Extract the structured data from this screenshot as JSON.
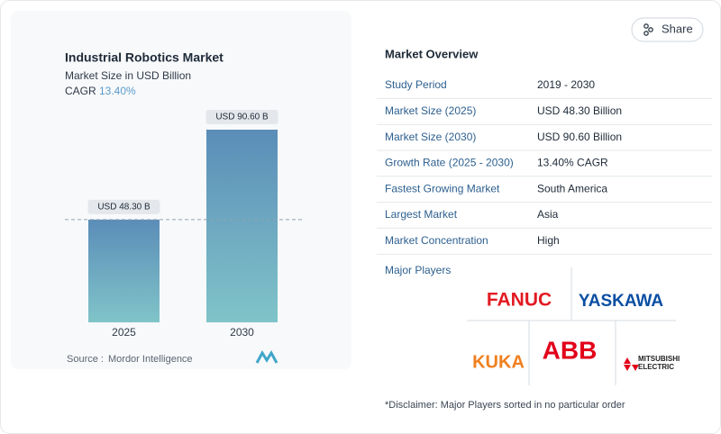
{
  "chart_data": {
    "type": "bar",
    "title": "Industrial Robotics Market",
    "subtitle": "Market Size in USD Billion",
    "cagr_label": "CAGR",
    "cagr": "13.40%",
    "categories": [
      "2025",
      "2030"
    ],
    "values": [
      48.3,
      90.6
    ],
    "value_labels": [
      "USD 48.30 B",
      "USD 90.60 B"
    ],
    "gradient": [
      "#5b8db8",
      "#80c4c9"
    ],
    "reference_line": true,
    "source_label": "Source :",
    "source": "Mordor Intelligence"
  },
  "share": "Share",
  "overview": {
    "title": "Market Overview",
    "rows": [
      [
        "Study Period",
        "2019 - 2030"
      ],
      [
        "Market Size (2025)",
        "USD 48.30 Billion"
      ],
      [
        "Market Size (2030)",
        "USD 90.60 Billion"
      ],
      [
        "Growth Rate (2025 - 2030)",
        "13.40% CAGR"
      ],
      [
        "Fastest Growing Market",
        "South America"
      ],
      [
        "Largest Market",
        "Asia"
      ],
      [
        "Market Concentration",
        "High"
      ]
    ],
    "players_title": "Major Players",
    "players": [
      "FANUC",
      "YASKAWA",
      "KUKA",
      "ABB",
      "MITSUBISHI",
      "ELECTRIC"
    ],
    "disclaimer": "*Disclaimer: Major Players sorted in no particular order"
  }
}
